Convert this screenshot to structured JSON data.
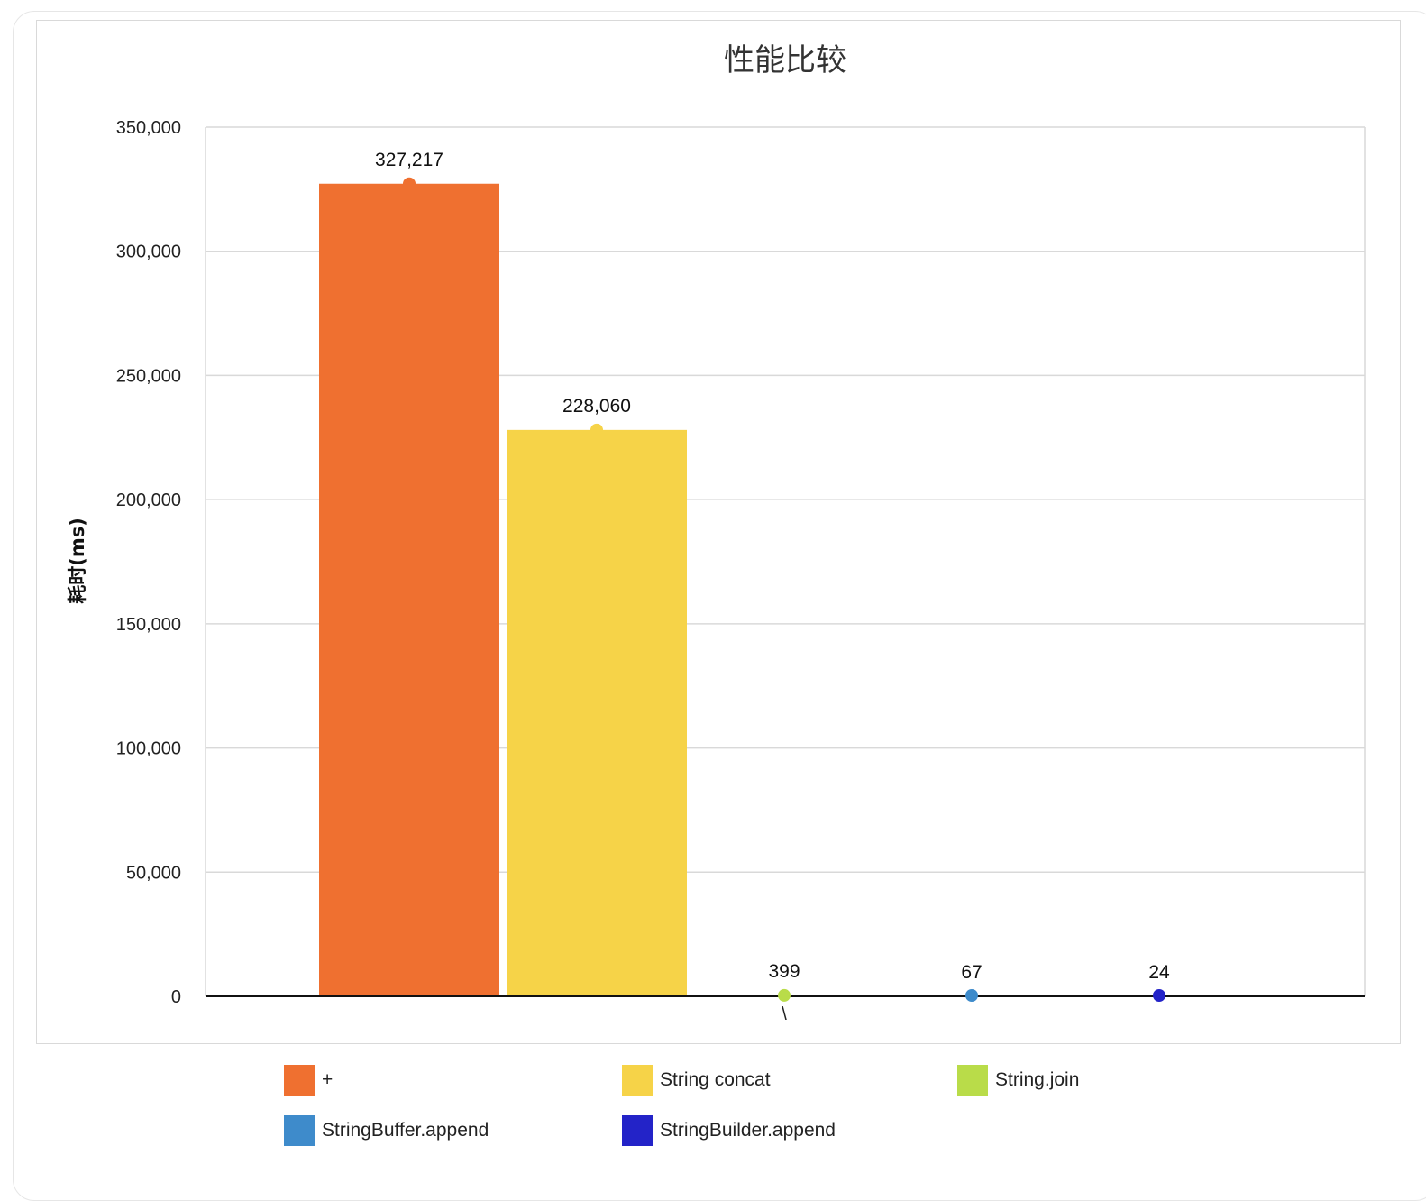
{
  "chart_data": {
    "type": "bar",
    "title": "性能比较",
    "ylabel": "耗时(ms)",
    "xlabel": "",
    "categories": [
      "\\"
    ],
    "ylim": [
      0,
      350000
    ],
    "yticks": [
      0,
      50000,
      100000,
      150000,
      200000,
      250000,
      300000,
      350000
    ],
    "ytick_labels": [
      "0",
      "50,000",
      "100,000",
      "150,000",
      "200,000",
      "250,000",
      "300,000",
      "350,000"
    ],
    "grid": true,
    "legend_position": "bottom",
    "series": [
      {
        "name": "+",
        "values": [
          327217
        ],
        "label": "327,217",
        "color": "#ef7030"
      },
      {
        "name": "String concat",
        "values": [
          228060
        ],
        "label": "228,060",
        "color": "#f6d348"
      },
      {
        "name": "String.join",
        "values": [
          399
        ],
        "label": "399",
        "color": "#b9dc49"
      },
      {
        "name": "StringBuffer.append",
        "values": [
          67
        ],
        "label": "67",
        "color": "#3e8bcb"
      },
      {
        "name": "StringBuilder.append",
        "values": [
          24
        ],
        "label": "24",
        "color": "#2323c8"
      }
    ]
  }
}
